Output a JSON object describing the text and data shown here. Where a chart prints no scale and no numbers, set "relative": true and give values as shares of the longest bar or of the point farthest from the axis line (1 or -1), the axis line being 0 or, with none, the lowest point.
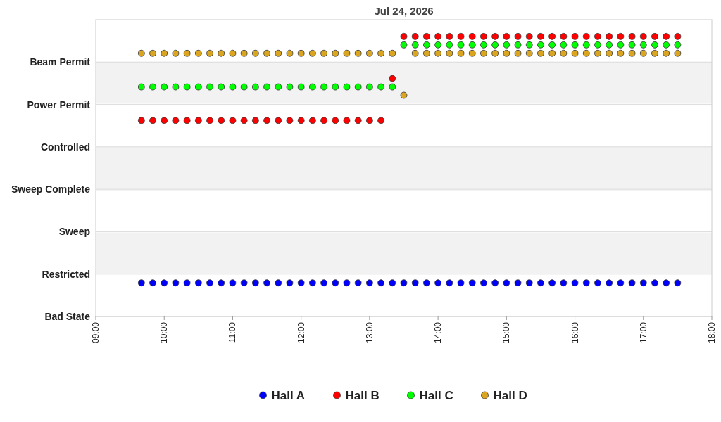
{
  "chart_data": {
    "type": "scatter",
    "title": "Jul 24, 2026",
    "relative": true,
    "x": [
      "2026-07-24T09:40",
      "2026-07-24T09:50",
      "2026-07-24T10:00",
      "2026-07-24T10:10",
      "2026-07-24T10:20",
      "2026-07-24T10:30",
      "2026-07-24T10:40",
      "2026-07-24T10:50",
      "2026-07-24T11:00",
      "2026-07-24T11:10",
      "2026-07-24T11:20",
      "2026-07-24T11:30",
      "2026-07-24T11:40",
      "2026-07-24T11:50",
      "2026-07-24T12:00",
      "2026-07-24T12:10",
      "2026-07-24T12:20",
      "2026-07-24T12:30",
      "2026-07-24T12:40",
      "2026-07-24T12:50",
      "2026-07-24T13:00",
      "2026-07-24T13:10",
      "2026-07-24T13:20",
      "2026-07-24T13:30",
      "2026-07-24T13:40",
      "2026-07-24T13:50",
      "2026-07-24T14:00",
      "2026-07-24T14:10",
      "2026-07-24T14:20",
      "2026-07-24T14:30",
      "2026-07-24T14:40",
      "2026-07-24T14:50",
      "2026-07-24T15:00",
      "2026-07-24T15:10",
      "2026-07-24T15:20",
      "2026-07-24T15:30",
      "2026-07-24T15:40",
      "2026-07-24T15:50",
      "2026-07-24T16:00",
      "2026-07-24T16:10",
      "2026-07-24T16:20",
      "2026-07-24T16:30",
      "2026-07-24T16:40",
      "2026-07-24T16:50",
      "2026-07-24T17:00",
      "2026-07-24T17:10",
      "2026-07-24T17:20",
      "2026-07-24T17:30"
    ],
    "series": [
      {
        "name": "Hall A",
        "color": "#0000ff",
        "values": [
          0.12,
          0.12,
          0.12,
          0.12,
          0.12,
          0.12,
          0.12,
          0.12,
          0.12,
          0.12,
          0.12,
          0.12,
          0.12,
          0.12,
          0.12,
          0.12,
          0.12,
          0.12,
          0.12,
          0.12,
          0.12,
          0.12,
          0.12,
          0.12,
          0.12,
          0.12,
          0.12,
          0.12,
          0.12,
          0.12,
          0.12,
          0.12,
          0.12,
          0.12,
          0.12,
          0.12,
          0.12,
          0.12,
          0.12,
          0.12,
          0.12,
          0.12,
          0.12,
          0.12,
          0.12,
          0.12,
          0.12,
          0.12
        ]
      },
      {
        "name": "Hall B",
        "color": "#ff0000",
        "values": [
          0.7,
          0.7,
          0.7,
          0.7,
          0.7,
          0.7,
          0.7,
          0.7,
          0.7,
          0.7,
          0.7,
          0.7,
          0.7,
          0.7,
          0.7,
          0.7,
          0.7,
          0.7,
          0.7,
          0.7,
          0.7,
          0.7,
          0.85,
          1,
          1,
          1,
          1,
          1,
          1,
          1,
          1,
          1,
          1,
          1,
          1,
          1,
          1,
          1,
          1,
          1,
          1,
          1,
          1,
          1,
          1,
          1,
          1,
          1
        ]
      },
      {
        "name": "Hall C",
        "color": "#00ff00",
        "values": [
          0.82,
          0.82,
          0.82,
          0.82,
          0.82,
          0.82,
          0.82,
          0.82,
          0.82,
          0.82,
          0.82,
          0.82,
          0.82,
          0.82,
          0.82,
          0.82,
          0.82,
          0.82,
          0.82,
          0.82,
          0.82,
          0.82,
          0.82,
          0.97,
          0.97,
          0.97,
          0.97,
          0.97,
          0.97,
          0.97,
          0.97,
          0.97,
          0.97,
          0.97,
          0.97,
          0.97,
          0.97,
          0.97,
          0.97,
          0.97,
          0.97,
          0.97,
          0.97,
          0.97,
          0.97,
          0.97,
          0.97,
          0.97
        ]
      },
      {
        "name": "Hall D",
        "color": "#daa520",
        "values": [
          0.94,
          0.94,
          0.94,
          0.94,
          0.94,
          0.94,
          0.94,
          0.94,
          0.94,
          0.94,
          0.94,
          0.94,
          0.94,
          0.94,
          0.94,
          0.94,
          0.94,
          0.94,
          0.94,
          0.94,
          0.94,
          0.94,
          0.94,
          0.79,
          0.94,
          0.94,
          0.94,
          0.94,
          0.94,
          0.94,
          0.94,
          0.94,
          0.94,
          0.94,
          0.94,
          0.94,
          0.94,
          0.94,
          0.94,
          0.94,
          0.94,
          0.94,
          0.94,
          0.94,
          0.94,
          0.94,
          0.94,
          0.94
        ]
      }
    ],
    "xlim": [
      "2026-07-24T09:00",
      "2026-07-24T18:00"
    ],
    "xticks": [
      {
        "value": "2026-07-24T09:00",
        "label": "09:00"
      },
      {
        "value": "2026-07-24T10:00",
        "label": "10:00"
      },
      {
        "value": "2026-07-24T11:00",
        "label": "11:00"
      },
      {
        "value": "2026-07-24T12:00",
        "label": "12:00"
      },
      {
        "value": "2026-07-24T13:00",
        "label": "13:00"
      },
      {
        "value": "2026-07-24T14:00",
        "label": "14:00"
      },
      {
        "value": "2026-07-24T15:00",
        "label": "15:00"
      },
      {
        "value": "2026-07-24T16:00",
        "label": "16:00"
      },
      {
        "value": "2026-07-24T17:00",
        "label": "17:00"
      },
      {
        "value": "2026-07-24T18:00",
        "label": "18:00"
      }
    ],
    "annotations": [
      "Beam Permit",
      "Power Permit",
      "Controlled",
      "Sweep Complete",
      "Sweep",
      "Restricted",
      "Bad State"
    ],
    "bands": [
      {
        "axis": "y",
        "from": 0.15,
        "to": 0.3,
        "color": "#f2f2f2"
      },
      {
        "axis": "y",
        "from": 0.45,
        "to": 0.61,
        "color": "#f2f2f2"
      },
      {
        "axis": "y",
        "from": 0.76,
        "to": 0.91,
        "color": "#f2f2f2"
      }
    ],
    "grid": "y",
    "legend": "bottom",
    "marker": "circle"
  }
}
